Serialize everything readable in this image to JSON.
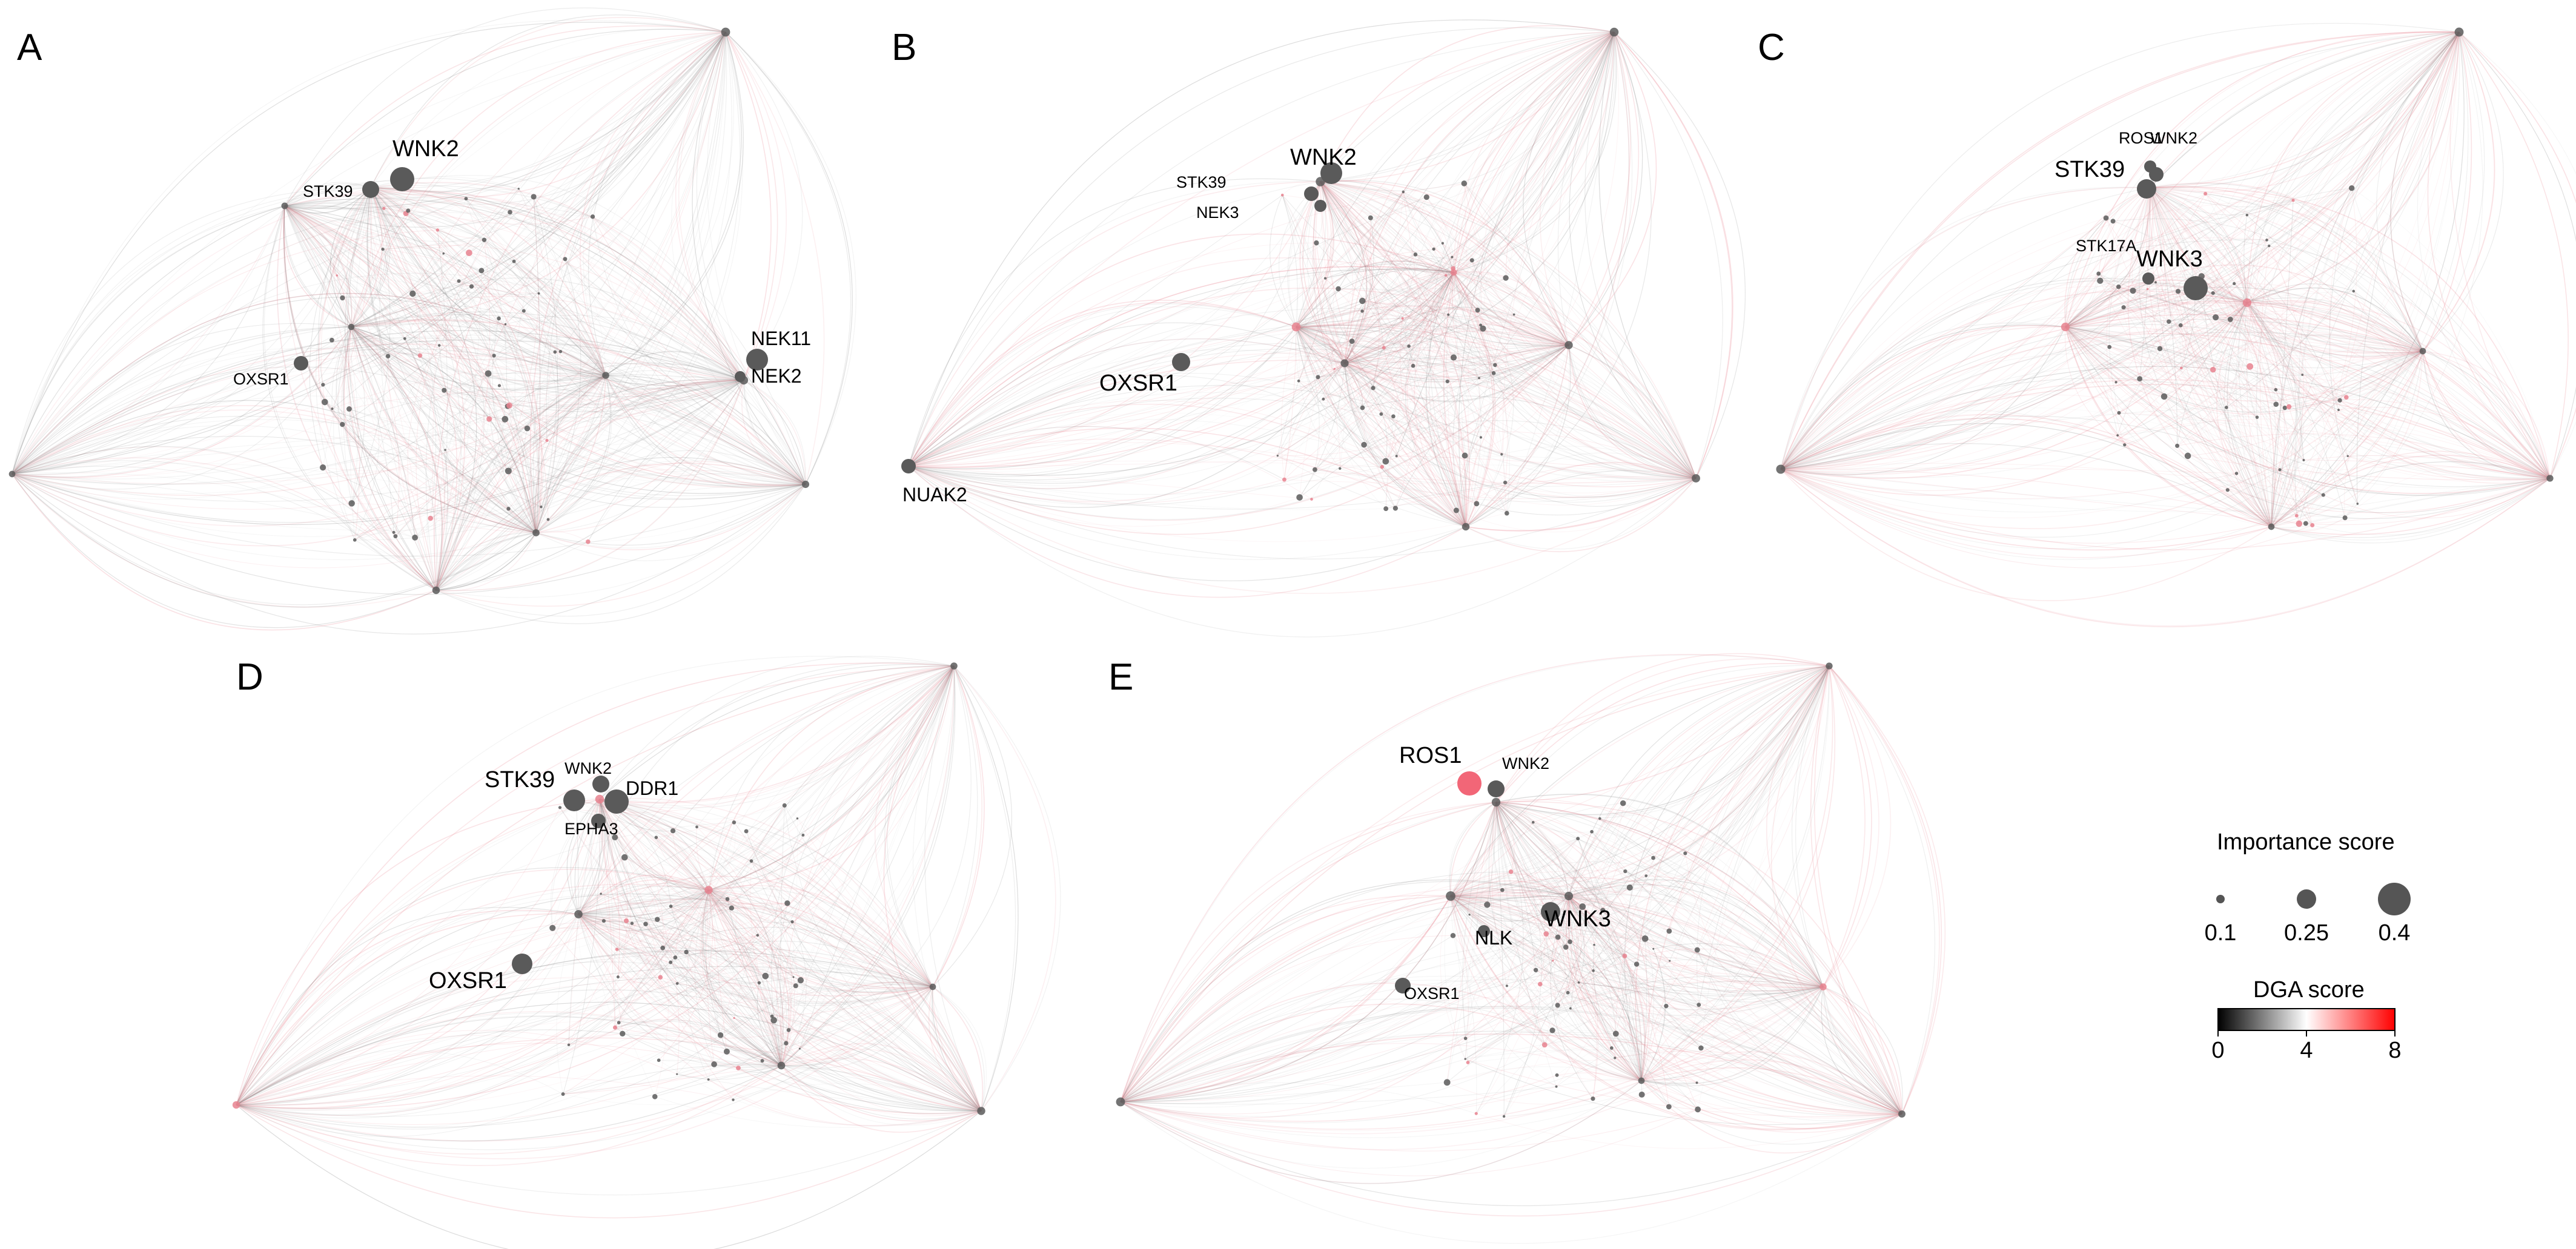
{
  "panels": [
    {
      "letter": "A",
      "labels": [
        {
          "text": "WNK2",
          "size": "large"
        },
        {
          "text": "STK39",
          "size": "small"
        },
        {
          "text": "OXSR1",
          "size": "small"
        },
        {
          "text": "NEK11",
          "size": "medium"
        },
        {
          "text": "NEK2",
          "size": "medium"
        }
      ]
    },
    {
      "letter": "B",
      "labels": [
        {
          "text": "WNK2",
          "size": "large"
        },
        {
          "text": "STK39",
          "size": "small"
        },
        {
          "text": "NEK3",
          "size": "small"
        },
        {
          "text": "OXSR1",
          "size": "large"
        },
        {
          "text": "NUAK2",
          "size": "medium"
        }
      ]
    },
    {
      "letter": "C",
      "labels": [
        {
          "text": "ROS1",
          "size": "small"
        },
        {
          "text": "WNK2",
          "size": "small"
        },
        {
          "text": "STK39",
          "size": "large"
        },
        {
          "text": "STK17A",
          "size": "small"
        },
        {
          "text": "WNK3",
          "size": "large"
        }
      ]
    },
    {
      "letter": "D",
      "labels": [
        {
          "text": "WNK2",
          "size": "small"
        },
        {
          "text": "STK39",
          "size": "large"
        },
        {
          "text": "DDR1",
          "size": "medium"
        },
        {
          "text": "EPHA3",
          "size": "small"
        },
        {
          "text": "OXSR1",
          "size": "large"
        }
      ]
    },
    {
      "letter": "E",
      "labels": [
        {
          "text": "ROS1",
          "size": "large"
        },
        {
          "text": "WNK2",
          "size": "small"
        },
        {
          "text": "WNK3",
          "size": "large"
        },
        {
          "text": "NLK",
          "size": "medium"
        },
        {
          "text": "OXSR1",
          "size": "small"
        }
      ]
    }
  ],
  "legend": {
    "importance": {
      "title": "Importance score",
      "ticks": [
        "0.1",
        "0.25",
        "0.4"
      ],
      "values": [
        0.1,
        0.25,
        0.4
      ],
      "node_color": "#555555"
    },
    "dga": {
      "title": "DGA score",
      "ticks": [
        "0",
        "4",
        "8"
      ],
      "values": [
        0,
        4,
        8
      ],
      "color_low": "#000000",
      "color_mid": "#ffffff",
      "color_high": "#ff0000"
    }
  },
  "colors": {
    "edge_dark": "#6e6e6e",
    "edge_light": "#b8b8b8",
    "edge_red": "#e8838f",
    "node": "#5a5a5a",
    "node_highlight": "#f26677"
  }
}
